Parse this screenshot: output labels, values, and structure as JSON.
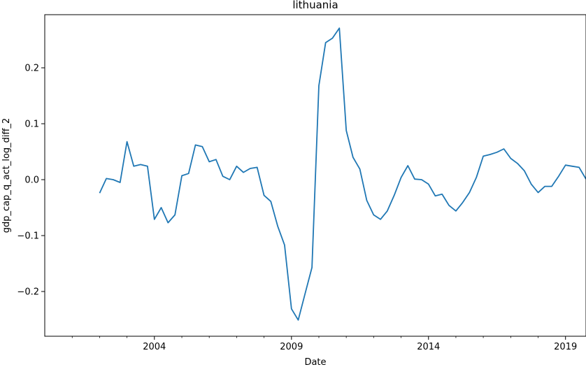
{
  "chart_data": {
    "type": "line",
    "title": "lithuania",
    "xlabel": "Date",
    "ylabel": "gdp_cap_q_act_log_diff_2",
    "x_range": [
      "2000-01-01",
      "2019-10-01"
    ],
    "ylim": [
      -0.28,
      0.295
    ],
    "x_ticks": [
      {
        "date": "2004-01-01",
        "label": "2004"
      },
      {
        "date": "2009-01-01",
        "label": "2009"
      },
      {
        "date": "2014-01-01",
        "label": "2014"
      },
      {
        "date": "2019-01-01",
        "label": "2019"
      }
    ],
    "x_minor_ticks": [
      "2001-01-01",
      "2002-01-01",
      "2003-01-01",
      "2005-01-01",
      "2006-01-01",
      "2007-01-01",
      "2008-01-01",
      "2010-01-01",
      "2011-01-01",
      "2012-01-01",
      "2013-01-01",
      "2015-01-01",
      "2016-01-01",
      "2017-01-01",
      "2018-01-01"
    ],
    "y_ticks": [
      {
        "value": -0.2,
        "label": "−0.2"
      },
      {
        "value": -0.1,
        "label": "−0.1"
      },
      {
        "value": 0.0,
        "label": "0.0"
      },
      {
        "value": 0.1,
        "label": "0.1"
      },
      {
        "value": 0.2,
        "label": "0.2"
      }
    ],
    "grid": false,
    "series": [
      {
        "color": "#1f77b4",
        "points": [
          [
            "2002-01-01",
            -0.024
          ],
          [
            "2002-04-01",
            0.002
          ],
          [
            "2002-07-01",
            0.0
          ],
          [
            "2002-10-01",
            -0.005
          ],
          [
            "2003-01-01",
            0.068
          ],
          [
            "2003-04-01",
            0.024
          ],
          [
            "2003-07-01",
            0.027
          ],
          [
            "2003-10-01",
            0.024
          ],
          [
            "2004-01-01",
            -0.071
          ],
          [
            "2004-04-01",
            -0.05
          ],
          [
            "2004-07-01",
            -0.077
          ],
          [
            "2004-10-01",
            -0.063
          ],
          [
            "2005-01-01",
            0.007
          ],
          [
            "2005-04-01",
            0.011
          ],
          [
            "2005-07-01",
            0.062
          ],
          [
            "2005-10-01",
            0.059
          ],
          [
            "2006-01-01",
            0.032
          ],
          [
            "2006-04-01",
            0.036
          ],
          [
            "2006-07-01",
            0.006
          ],
          [
            "2006-10-01",
            0.0
          ],
          [
            "2007-01-01",
            0.024
          ],
          [
            "2007-04-01",
            0.013
          ],
          [
            "2007-07-01",
            0.02
          ],
          [
            "2007-10-01",
            0.022
          ],
          [
            "2008-01-01",
            -0.028
          ],
          [
            "2008-04-01",
            -0.039
          ],
          [
            "2008-07-01",
            -0.083
          ],
          [
            "2008-10-01",
            -0.117
          ],
          [
            "2009-01-01",
            -0.231
          ],
          [
            "2009-04-01",
            -0.251
          ],
          [
            "2009-07-01",
            -0.204
          ],
          [
            "2009-10-01",
            -0.157
          ],
          [
            "2010-01-01",
            0.168
          ],
          [
            "2010-04-01",
            0.245
          ],
          [
            "2010-07-01",
            0.253
          ],
          [
            "2010-10-01",
            0.271
          ],
          [
            "2011-01-01",
            0.088
          ],
          [
            "2011-04-01",
            0.04
          ],
          [
            "2011-07-01",
            0.019
          ],
          [
            "2011-10-01",
            -0.037
          ],
          [
            "2012-01-01",
            -0.063
          ],
          [
            "2012-04-01",
            -0.071
          ],
          [
            "2012-07-01",
            -0.056
          ],
          [
            "2012-10-01",
            -0.028
          ],
          [
            "2013-01-01",
            0.004
          ],
          [
            "2013-04-01",
            0.025
          ],
          [
            "2013-07-01",
            0.001
          ],
          [
            "2013-10-01",
            0.0
          ],
          [
            "2014-01-01",
            -0.008
          ],
          [
            "2014-04-01",
            -0.029
          ],
          [
            "2014-07-01",
            -0.026
          ],
          [
            "2014-10-01",
            -0.046
          ],
          [
            "2015-01-01",
            -0.056
          ],
          [
            "2015-04-01",
            -0.041
          ],
          [
            "2015-07-01",
            -0.023
          ],
          [
            "2015-10-01",
            0.004
          ],
          [
            "2016-01-01",
            0.042
          ],
          [
            "2016-04-01",
            0.045
          ],
          [
            "2016-07-01",
            0.049
          ],
          [
            "2016-10-01",
            0.055
          ],
          [
            "2017-01-01",
            0.038
          ],
          [
            "2017-04-01",
            0.029
          ],
          [
            "2017-07-01",
            0.016
          ],
          [
            "2017-10-01",
            -0.008
          ],
          [
            "2018-01-01",
            -0.023
          ],
          [
            "2018-04-01",
            -0.012
          ],
          [
            "2018-07-01",
            -0.012
          ],
          [
            "2018-10-01",
            0.006
          ],
          [
            "2019-01-01",
            0.026
          ],
          [
            "2019-04-01",
            0.024
          ],
          [
            "2019-07-01",
            0.022
          ],
          [
            "2019-10-01",
            0.001
          ]
        ]
      }
    ]
  }
}
